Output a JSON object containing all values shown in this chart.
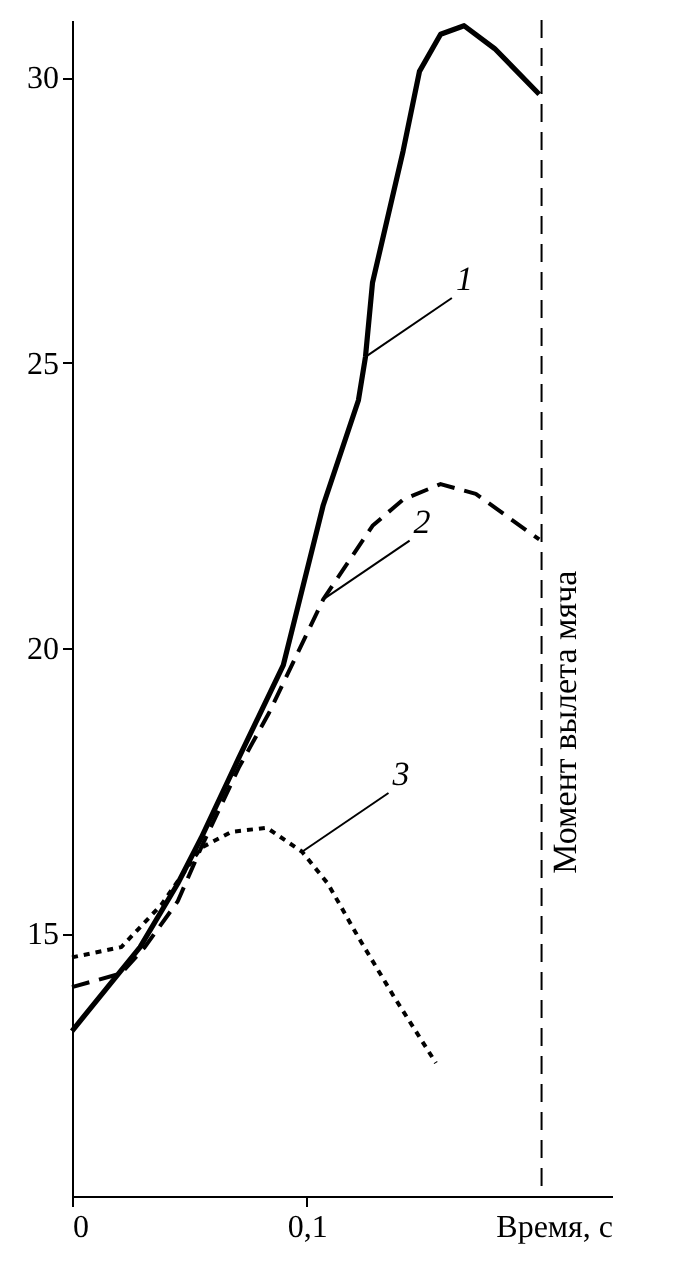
{
  "chart_data": {
    "type": "line",
    "xlabel": "Время, с",
    "xlim": [
      0,
      0.23
    ],
    "ylim": [
      10.4,
      31
    ],
    "xticks": [
      {
        "value": 0,
        "label": "0"
      },
      {
        "value": 0.1,
        "label": "0,1"
      }
    ],
    "yticks": [
      15,
      20,
      25,
      30
    ],
    "grid": false,
    "ref_lines": [
      {
        "axis": "x",
        "value": 0.2,
        "label": "Момент вылета мяча",
        "line_style": "dashed",
        "color": "#000000"
      }
    ],
    "series": [
      {
        "name": "1",
        "color": "#000000",
        "line_style": "solid",
        "x": [
          0,
          0.029,
          0.045,
          0.055,
          0.071,
          0.09,
          0.107,
          0.122,
          0.125,
          0.128,
          0.141,
          0.148,
          0.157,
          0.167,
          0.18,
          0.199
        ],
        "values": [
          13.29,
          14.76,
          15.87,
          16.67,
          18.07,
          19.7,
          22.5,
          24.34,
          25.1,
          26.4,
          28.7,
          30.1,
          30.75,
          30.9,
          30.5,
          29.7
        ]
      },
      {
        "name": "2",
        "color": "#000000",
        "line_style": "dashed",
        "x": [
          0,
          0.021,
          0.031,
          0.045,
          0.055,
          0.071,
          0.084,
          0.107,
          0.128,
          0.141,
          0.157,
          0.172,
          0.199
        ],
        "values": [
          14.06,
          14.3,
          14.76,
          15.56,
          16.5,
          17.9,
          18.87,
          20.85,
          22.14,
          22.6,
          22.87,
          22.7,
          21.9
        ]
      },
      {
        "name": "3",
        "color": "#000000",
        "line_style": "dotted",
        "x": [
          0,
          0.021,
          0.038,
          0.055,
          0.068,
          0.083,
          0.098,
          0.109,
          0.122,
          0.137,
          0.155
        ],
        "values": [
          14.58,
          14.76,
          15.5,
          16.5,
          16.78,
          16.85,
          16.43,
          15.87,
          14.93,
          13.9,
          12.73
        ]
      }
    ]
  }
}
